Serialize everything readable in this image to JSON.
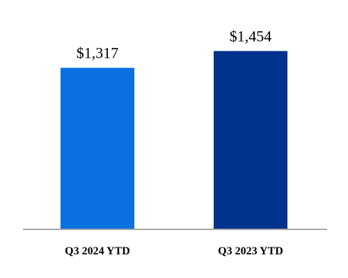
{
  "chart_data": {
    "type": "bar",
    "categories": [
      "Q3 2024 YTD",
      "Q3 2023 YTD"
    ],
    "values": [
      1317,
      1454
    ],
    "value_labels": [
      "$1,317",
      "$1,454"
    ],
    "colors": [
      "#0A6FE0",
      "#00338D"
    ],
    "axis_color": "#A6A6A6",
    "title": "",
    "xlabel": "",
    "ylabel": "",
    "ylim": [
      0,
      1700
    ],
    "grid": false,
    "legend": "none"
  }
}
